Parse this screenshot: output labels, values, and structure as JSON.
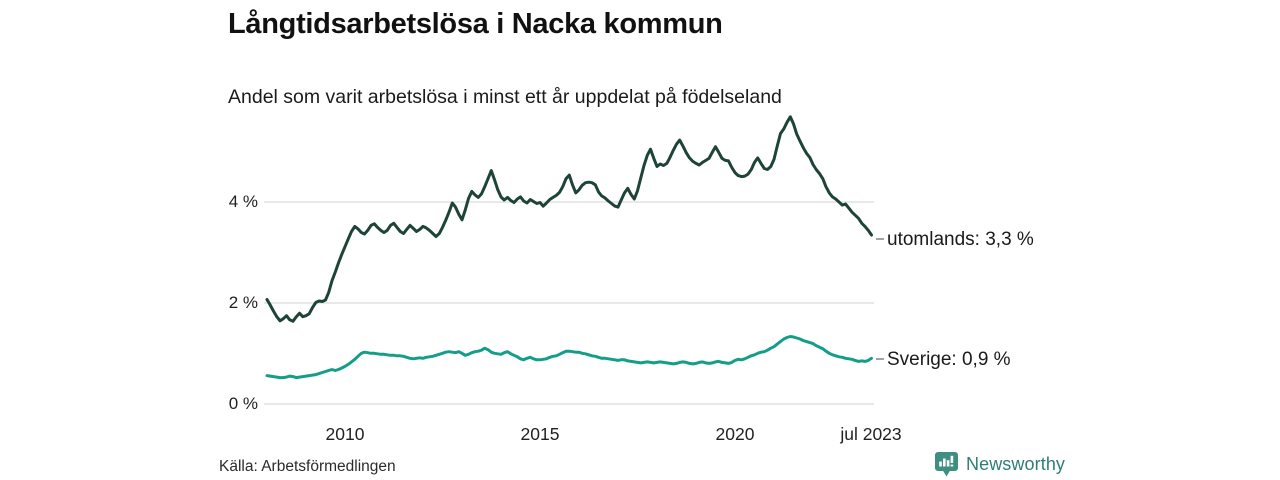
{
  "header": {
    "title": "Långtidsarbetslösa i Nacka kommun",
    "subtitle": "Andel som varit arbetslösa i minst ett år uppdelat på födelseland"
  },
  "footer": {
    "source": "Källa: Arbetsförmedlingen",
    "brand": "Newsworthy"
  },
  "colors": {
    "utomlands_line": "#1e443a",
    "sverige_line": "#149e89",
    "gridline": "#dcdcdc",
    "leader_dash": "#8a8a8a",
    "brand_teal": "#3e8e81"
  },
  "chart_data": {
    "type": "line",
    "title": "Långtidsarbetslösa i Nacka kommun",
    "subtitle": "Andel som varit arbetslösa i minst ett år uppdelat på födelseland",
    "unit": "percent",
    "x_start": 2008.0,
    "x_step": "monthly (1/12 year)",
    "x_end_label": "jul 2023",
    "xlim": [
      2008.0,
      2023.58
    ],
    "ylim": [
      0,
      6
    ],
    "grid": "horizontal gridlines at 0, 2, 4 %",
    "legend_position": "end-of-line annotations, right side",
    "yticks": [
      {
        "value": 4,
        "label": "4 %"
      },
      {
        "value": 2,
        "label": "2 %"
      },
      {
        "value": 0,
        "label": "0 %"
      }
    ],
    "xticks": [
      {
        "value": 2010,
        "label": "2010"
      },
      {
        "value": 2015,
        "label": "2015"
      },
      {
        "value": 2020,
        "label": "2020"
      },
      {
        "value": 2023.5,
        "label": "jul 2023"
      }
    ],
    "series": [
      {
        "name": "utomlands",
        "end_label": "utomlands: 3,3 %",
        "end_value": "3,3 %",
        "color": "#1e443a",
        "values": [
          2.06,
          1.95,
          1.83,
          1.72,
          1.64,
          1.68,
          1.74,
          1.66,
          1.63,
          1.72,
          1.79,
          1.72,
          1.74,
          1.78,
          1.9,
          2.0,
          2.03,
          2.02,
          2.05,
          2.2,
          2.43,
          2.6,
          2.78,
          2.95,
          3.1,
          3.25,
          3.4,
          3.5,
          3.45,
          3.38,
          3.35,
          3.42,
          3.52,
          3.55,
          3.48,
          3.42,
          3.38,
          3.42,
          3.52,
          3.56,
          3.48,
          3.4,
          3.36,
          3.44,
          3.52,
          3.46,
          3.4,
          3.44,
          3.5,
          3.47,
          3.42,
          3.36,
          3.3,
          3.36,
          3.48,
          3.62,
          3.78,
          3.96,
          3.88,
          3.74,
          3.63,
          3.82,
          4.05,
          4.19,
          4.12,
          4.07,
          4.14,
          4.28,
          4.44,
          4.6,
          4.42,
          4.22,
          4.08,
          4.02,
          4.07,
          4.01,
          3.97,
          4.04,
          4.08,
          4.0,
          3.96,
          4.03,
          3.99,
          3.95,
          3.97,
          3.9,
          3.96,
          4.03,
          4.07,
          4.11,
          4.17,
          4.28,
          4.44,
          4.51,
          4.32,
          4.16,
          4.22,
          4.31,
          4.36,
          4.37,
          4.36,
          4.32,
          4.18,
          4.1,
          4.06,
          4.0,
          3.95,
          3.9,
          3.88,
          4.02,
          4.16,
          4.25,
          4.13,
          4.04,
          4.2,
          4.45,
          4.7,
          4.9,
          5.02,
          4.84,
          4.68,
          4.73,
          4.7,
          4.74,
          4.86,
          5.0,
          5.12,
          5.2,
          5.08,
          4.95,
          4.85,
          4.78,
          4.74,
          4.71,
          4.76,
          4.8,
          4.84,
          4.96,
          5.07,
          4.96,
          4.84,
          4.8,
          4.79,
          4.66,
          4.56,
          4.5,
          4.48,
          4.49,
          4.53,
          4.62,
          4.76,
          4.85,
          4.74,
          4.64,
          4.62,
          4.68,
          4.82,
          5.08,
          5.33,
          5.42,
          5.55,
          5.66,
          5.52,
          5.32,
          5.18,
          5.05,
          4.94,
          4.86,
          4.72,
          4.62,
          4.54,
          4.44,
          4.28,
          4.16,
          4.08,
          4.04,
          3.98,
          3.92,
          3.94,
          3.86,
          3.78,
          3.72,
          3.66,
          3.56,
          3.5,
          3.42,
          3.33
        ]
      },
      {
        "name": "Sverige",
        "end_label": "Sverige: 0,9 %",
        "end_value": "0,9 %",
        "color": "#149e89",
        "values": [
          0.56,
          0.55,
          0.54,
          0.53,
          0.52,
          0.52,
          0.53,
          0.55,
          0.54,
          0.52,
          0.53,
          0.54,
          0.55,
          0.56,
          0.57,
          0.58,
          0.6,
          0.62,
          0.64,
          0.66,
          0.68,
          0.66,
          0.68,
          0.71,
          0.74,
          0.78,
          0.83,
          0.88,
          0.94,
          1.0,
          1.02,
          1.01,
          1.0,
          1.0,
          0.99,
          0.98,
          0.98,
          0.97,
          0.96,
          0.96,
          0.95,
          0.95,
          0.94,
          0.92,
          0.9,
          0.89,
          0.9,
          0.91,
          0.9,
          0.92,
          0.93,
          0.94,
          0.96,
          0.98,
          1.0,
          1.02,
          1.03,
          1.02,
          1.01,
          1.03,
          1.0,
          0.96,
          0.98,
          1.01,
          1.03,
          1.04,
          1.06,
          1.1,
          1.07,
          1.02,
          1.0,
          0.99,
          0.98,
          1.01,
          1.03,
          0.99,
          0.96,
          0.93,
          0.89,
          0.87,
          0.9,
          0.92,
          0.89,
          0.87,
          0.87,
          0.88,
          0.89,
          0.92,
          0.94,
          0.95,
          0.98,
          1.01,
          1.04,
          1.04,
          1.03,
          1.02,
          1.02,
          1.0,
          0.99,
          0.97,
          0.95,
          0.94,
          0.92,
          0.9,
          0.9,
          0.89,
          0.88,
          0.87,
          0.86,
          0.87,
          0.87,
          0.85,
          0.84,
          0.83,
          0.82,
          0.81,
          0.82,
          0.83,
          0.82,
          0.81,
          0.82,
          0.83,
          0.82,
          0.81,
          0.8,
          0.79,
          0.8,
          0.82,
          0.83,
          0.82,
          0.8,
          0.79,
          0.8,
          0.82,
          0.83,
          0.81,
          0.8,
          0.81,
          0.83,
          0.84,
          0.82,
          0.81,
          0.8,
          0.82,
          0.86,
          0.88,
          0.87,
          0.89,
          0.92,
          0.95,
          0.97,
          1.0,
          1.02,
          1.03,
          1.06,
          1.1,
          1.13,
          1.18,
          1.23,
          1.28,
          1.31,
          1.33,
          1.32,
          1.3,
          1.28,
          1.25,
          1.23,
          1.21,
          1.19,
          1.15,
          1.12,
          1.09,
          1.04,
          1.0,
          0.97,
          0.95,
          0.93,
          0.92,
          0.9,
          0.89,
          0.88,
          0.86,
          0.84,
          0.85,
          0.84,
          0.86,
          0.9
        ]
      }
    ]
  }
}
